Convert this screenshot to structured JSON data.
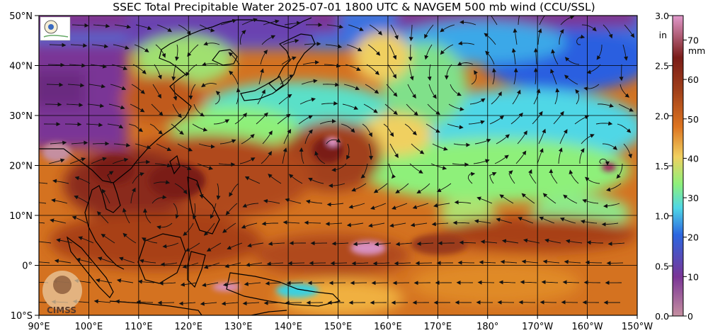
{
  "title": "SSEC Total Precipitable Water  2025-07-01 1800 UTC & NAVGEM 500 mb wind (CCU/SSL)",
  "lat_labels": [
    "50°N",
    "40°N",
    "30°N",
    "20°N",
    "10°N",
    "0°",
    "10°S"
  ],
  "lon_labels": [
    "90°E",
    "100°E",
    "110°E",
    "120°E",
    "130°E",
    "140°E",
    "150°E",
    "160°E",
    "170°E",
    "180°",
    "170°W",
    "160°W",
    "150°W"
  ],
  "colorbar": {
    "in_unit": "in",
    "mm_unit": "mm",
    "in_ticks": [
      "3.0",
      "2.5",
      "2.0",
      "1.5",
      "1.0",
      "0.5",
      "0.0"
    ],
    "mm_ticks": [
      "70",
      "60",
      "50",
      "40",
      "30",
      "20",
      "10",
      "0"
    ]
  },
  "logos": {
    "cimss_text": "CIMSS"
  },
  "colors": {
    "dry_pink": "#c58fa0",
    "purple": "#7a3596",
    "blue": "#2c66e0",
    "cyan": "#4fd7e6",
    "green": "#8ef07a",
    "yellow": "#f0d060",
    "orange": "#dd7420",
    "brown": "#a1401a",
    "dark_red": "#7a1c18",
    "moist_pink": "#e199cc"
  }
}
